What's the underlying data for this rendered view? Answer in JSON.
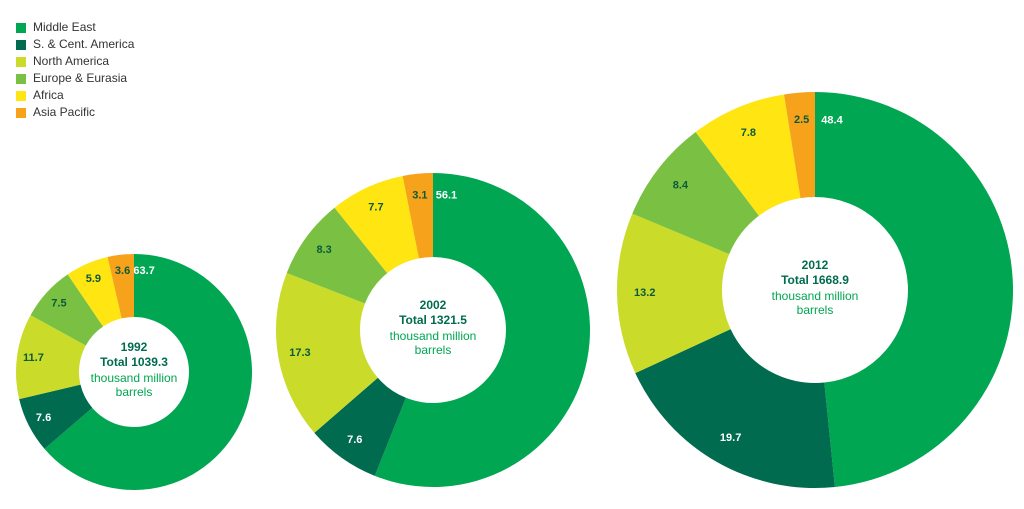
{
  "legend": {
    "names": [
      "Middle East",
      "S. & Cent. America",
      "North America",
      "Europe & Eurasia",
      "Africa",
      "Asia Pacific"
    ],
    "colors": [
      "#00a651",
      "#006b4f",
      "#cadb2a",
      "#7ac143",
      "#ffe512",
      "#f7a21b"
    ]
  },
  "chart_data": [
    {
      "type": "pie",
      "title": "1992",
      "subtitle": "Total 1039.3",
      "unit": "thousand million barrels",
      "values": [
        63.7,
        7.6,
        11.7,
        7.5,
        5.9,
        3.6
      ]
    },
    {
      "type": "pie",
      "title": "2002",
      "subtitle": "Total 1321.5",
      "unit": "thousand million barrels",
      "values": [
        56.1,
        7.6,
        17.3,
        8.3,
        7.7,
        3.1
      ]
    },
    {
      "type": "pie",
      "title": "2012",
      "subtitle": "Total 1668.9",
      "unit": "thousand million barrels",
      "values": [
        48.4,
        19.7,
        13.2,
        8.4,
        7.8,
        2.5
      ]
    }
  ]
}
